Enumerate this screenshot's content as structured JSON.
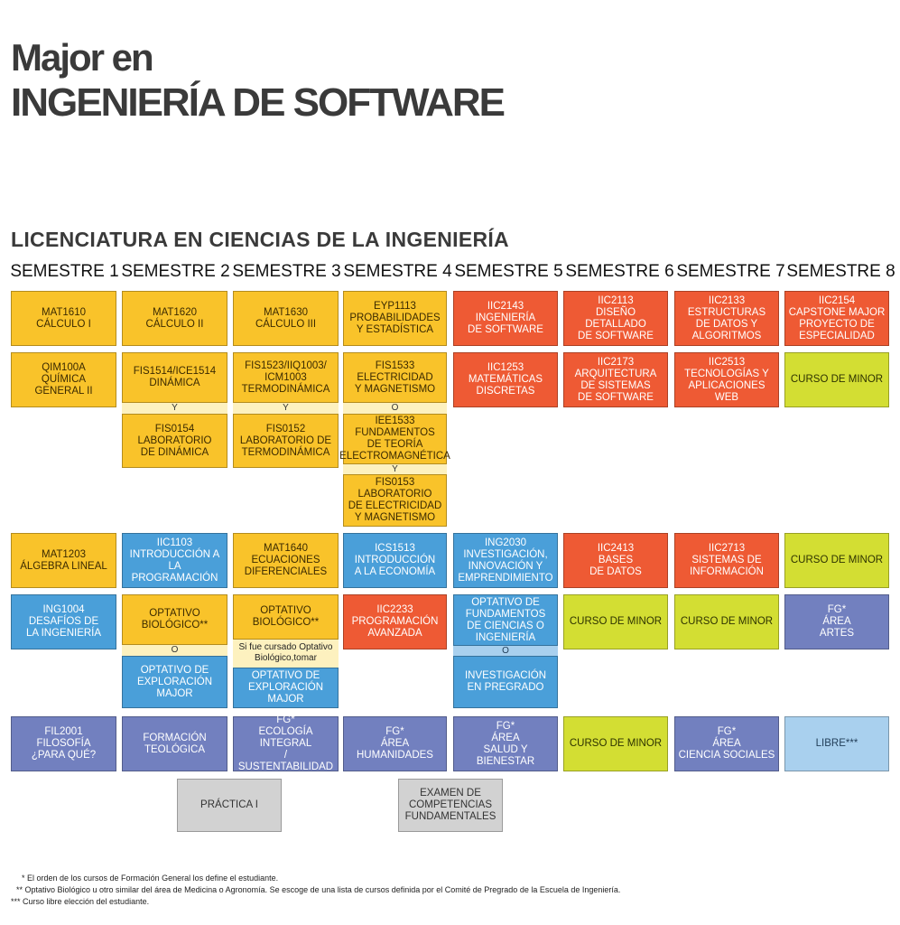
{
  "title": {
    "line1": "Major en",
    "line2": "INGENIERÍA DE SOFTWARE"
  },
  "subtitle": "LICENCIATURA EN CIENCIAS DE LA INGENIERÍA",
  "semesters": [
    "SEMESTRE 1",
    "SEMESTRE 2",
    "SEMESTRE 3",
    "SEMESTRE 4",
    "SEMESTRE 5",
    "SEMESTRE 6",
    "SEMESTRE 7",
    "SEMESTRE 8"
  ],
  "colors": {
    "yellow": "#f9c32a",
    "orange": "#ee5a34",
    "lime": "#d3de33",
    "blue": "#4a9fd9",
    "purple": "#7280bf",
    "lightblue": "#a9d0ee",
    "gray": "#d2d2d2"
  },
  "courses": {
    "mat1610": "MAT1610\nCÁLCULO I",
    "mat1620": "MAT1620\nCÁLCULO II",
    "mat1630": "MAT1630\nCÁLCULO III",
    "eyp1113": "EYP1113\nPROBABILIDADES\nY ESTADÍSTICA",
    "iic2143": "IIC2143\nINGENIERÍA\nDE SOFTWARE",
    "iic2113": "IIC2113\nDISEÑO DETALLADO\nDE SOFTWARE",
    "iic2133": "IIC2133\nESTRUCTURAS\nDE DATOS Y\nALGORITMOS",
    "iic2154": "IIC2154\nCAPSTONE MAJOR\nPROYECTO DE\nESPECIALIDAD",
    "qim100a": "QIM100A\nQUÍMICA\nGENERAL II",
    "fis1514": "FIS1514/ICE1514\nDINÁMICA",
    "fis0154": "FIS0154\nLABORATORIO\nDE DINÁMICA",
    "fis1523": "FIS1523/IIQ1003/\nICM1003\nTERMODINÁMICA",
    "fis0152": "FIS0152\nLABORATORIO DE\nTERMODINÁMICA",
    "fis1533": "FIS1533\nELECTRICIDAD\nY MAGNETISMO",
    "iee1533": "IEE1533\nFUNDAMENTOS\nDE TEORÍA\nELECTROMAGNÉTICA",
    "fis0153": "FIS0153\nLABORATORIO\nDE ELECTRICIDAD\nY MAGNETISMO",
    "iic1253": "IIC1253\nMATEMÁTICAS\nDISCRETAS",
    "iic2173": "IIC2173\nARQUITECTURA\nDE SISTEMAS\nDE SOFTWARE",
    "iic2513": "IIC2513\nTECNOLOGÍAS Y\nAPLICACIONES WEB",
    "minor_s8_r2": "CURSO DE MINOR",
    "mat1203": "MAT1203\nÁLGEBRA LINEAL",
    "iic1103": "IIC1103\nINTRODUCCIÓN A\nLA PROGRAMACIÓN",
    "mat1640": "MAT1640\nECUACIONES\nDIFERENCIALES",
    "ics1513": "ICS1513\nINTRODUCCIÓN\nA LA ECONOMÍA",
    "ing2030": "ING2030\nINVESTIGACIÓN,\nINNOVACIÓN Y\nEMPRENDIMIENTO",
    "iic2413": "IIC2413\nBASES\nDE DATOS",
    "iic2713": "IIC2713\nSISTEMAS DE\nINFORMACIÓN",
    "minor_s8_r3": "CURSO DE MINOR",
    "ing1004": "ING1004\nDESAFÍOS DE\nLA INGENIERÍA",
    "opt_bio_s2": "OPTATIVO\nBIOLÓGICO**",
    "opt_expl_s2": "OPTATIVO DE\nEXPLORACIÓN\nMAJOR",
    "opt_bio_s3": "OPTATIVO\nBIOLÓGICO**",
    "opt_bio_s3_note": "Si fue cursado Optativo\nBiológico,tomar",
    "opt_expl_s3": "OPTATIVO DE\nEXPLORACIÓN\nMAJOR",
    "iic2233": "IIC2233\nPROGRAMACIÓN\nAVANZADA",
    "opt_fund_s5": "OPTATIVO DE\nFUNDAMENTOS\nDE CIENCIAS O\nINGENIERÍA",
    "inv_pregrado": "INVESTIGACIÓN\nEN PREGRADO",
    "minor_s6_r4": "CURSO DE MINOR",
    "minor_s7_r4": "CURSO DE MINOR",
    "fg_artes": "FG*\nÁREA\nARTES",
    "fil2001": "FIL2001\nFILOSOFÍA\n¿PARA QUÉ?",
    "formacion_teologica": "FORMACIÓN\nTEOLÓGICA",
    "fg_ecologia": "FG*\nECOLOGÍA INTEGRAL\n/ SUSTENTABILIDAD",
    "fg_humanidades": "FG*\nÁREA\nHUMANIDADES",
    "fg_salud": "FG*\nÁREA\nSALUD Y BIENESTAR",
    "minor_s6_r5": "CURSO DE MINOR",
    "fg_sociales": "FG*\nÁREA\nCIENCIA SOCIALES",
    "libre": "LIBRE***",
    "practica": "PRÁCTICA I",
    "examen": "EXAMEN DE\nCOMPETENCIAS\nFUNDAMENTALES"
  },
  "connectors": {
    "y": "Y",
    "o": "O"
  },
  "footnotes": [
    "* El orden de los cursos de Formación General los define el estudiante.",
    "** Optativo Biológico u otro similar del área de Medicina o Agronomía. Se escoge de una lista de cursos definida por el Comité de Pregrado de la Escuela de Ingeniería.",
    "*** Curso libre elección del estudiante."
  ]
}
